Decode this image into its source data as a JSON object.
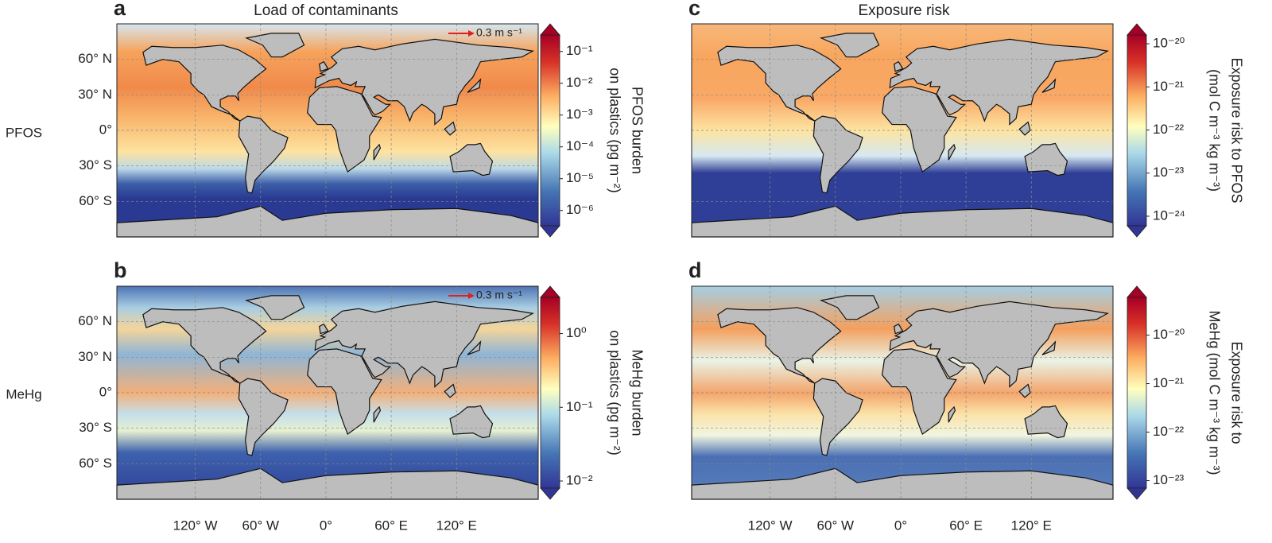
{
  "columns": [
    {
      "title": "Load of contaminants"
    },
    {
      "title": "Exposure risk"
    }
  ],
  "rows": [
    "PFOS",
    "MeHg"
  ],
  "map": {
    "lon_lim": [
      -192,
      195
    ],
    "lat_lim": [
      -90,
      90
    ],
    "lat_ticks": [
      {
        "value": 60,
        "label": "60° N"
      },
      {
        "value": 30,
        "label": "30° N"
      },
      {
        "value": 0,
        "label": "0°"
      },
      {
        "value": -30,
        "label": "30° S"
      },
      {
        "value": -60,
        "label": "60° S"
      }
    ],
    "lon_ticks": [
      {
        "value": -120,
        "label": "120° W"
      },
      {
        "value": -60,
        "label": "60° W"
      },
      {
        "value": 0,
        "label": "0°"
      },
      {
        "value": 60,
        "label": "60° E"
      },
      {
        "value": 120,
        "label": "120° E"
      }
    ]
  },
  "panels": [
    {
      "letter": "a",
      "scale_arrow": "0.3 m s⁻¹",
      "colorbar": {
        "label": [
          "PFOS burden",
          "on plastics (pg m⁻²)"
        ],
        "log": true,
        "lim": [
          3.3e-07,
          0.33
        ],
        "ticks": [
          {
            "value": 0.1,
            "label": "10⁻¹"
          },
          {
            "value": 0.01,
            "label": "10⁻²"
          },
          {
            "value": 0.001,
            "label": "10⁻³"
          },
          {
            "value": 0.0001,
            "label": "10⁻⁴"
          },
          {
            "value": 1e-05,
            "label": "10⁻⁵"
          },
          {
            "value": 1e-06,
            "label": "10⁻⁶"
          }
        ]
      }
    },
    {
      "letter": "b",
      "scale_arrow": "0.3 m s⁻¹",
      "colorbar": {
        "label": [
          "MeHg burden",
          "on plastics (pg m⁻²)"
        ],
        "log": true,
        "lim": [
          0.008,
          3.1
        ],
        "ticks": [
          {
            "value": 1,
            "label": "10⁰"
          },
          {
            "value": 0.1,
            "label": "10⁻¹"
          },
          {
            "value": 0.01,
            "label": "10⁻²"
          }
        ]
      }
    },
    {
      "letter": "c",
      "colorbar": {
        "label": [
          "Exposure risk to PFOS",
          "(mol C m⁻³ kg m⁻³)"
        ],
        "log": true,
        "lim": [
          6e-25,
          1.6e-20
        ],
        "ticks": [
          {
            "value": 1e-20,
            "label": "10⁻²⁰"
          },
          {
            "value": 1e-21,
            "label": "10⁻²¹"
          },
          {
            "value": 1e-22,
            "label": "10⁻²²"
          },
          {
            "value": 1e-23,
            "label": "10⁻²³"
          },
          {
            "value": 1e-24,
            "label": "10⁻²⁴"
          }
        ]
      }
    },
    {
      "letter": "d",
      "colorbar": {
        "label": [
          "Exposure risk to",
          "MeHg (mol C m⁻³ kg m⁻³)"
        ],
        "log": true,
        "lim": [
          7e-24,
          6e-20
        ],
        "ticks": [
          {
            "value": 1e-20,
            "label": "10⁻²⁰"
          },
          {
            "value": 1e-21,
            "label": "10⁻²¹"
          },
          {
            "value": 1e-22,
            "label": "10⁻²²"
          },
          {
            "value": 1e-23,
            "label": "10⁻²³"
          }
        ]
      }
    }
  ]
}
